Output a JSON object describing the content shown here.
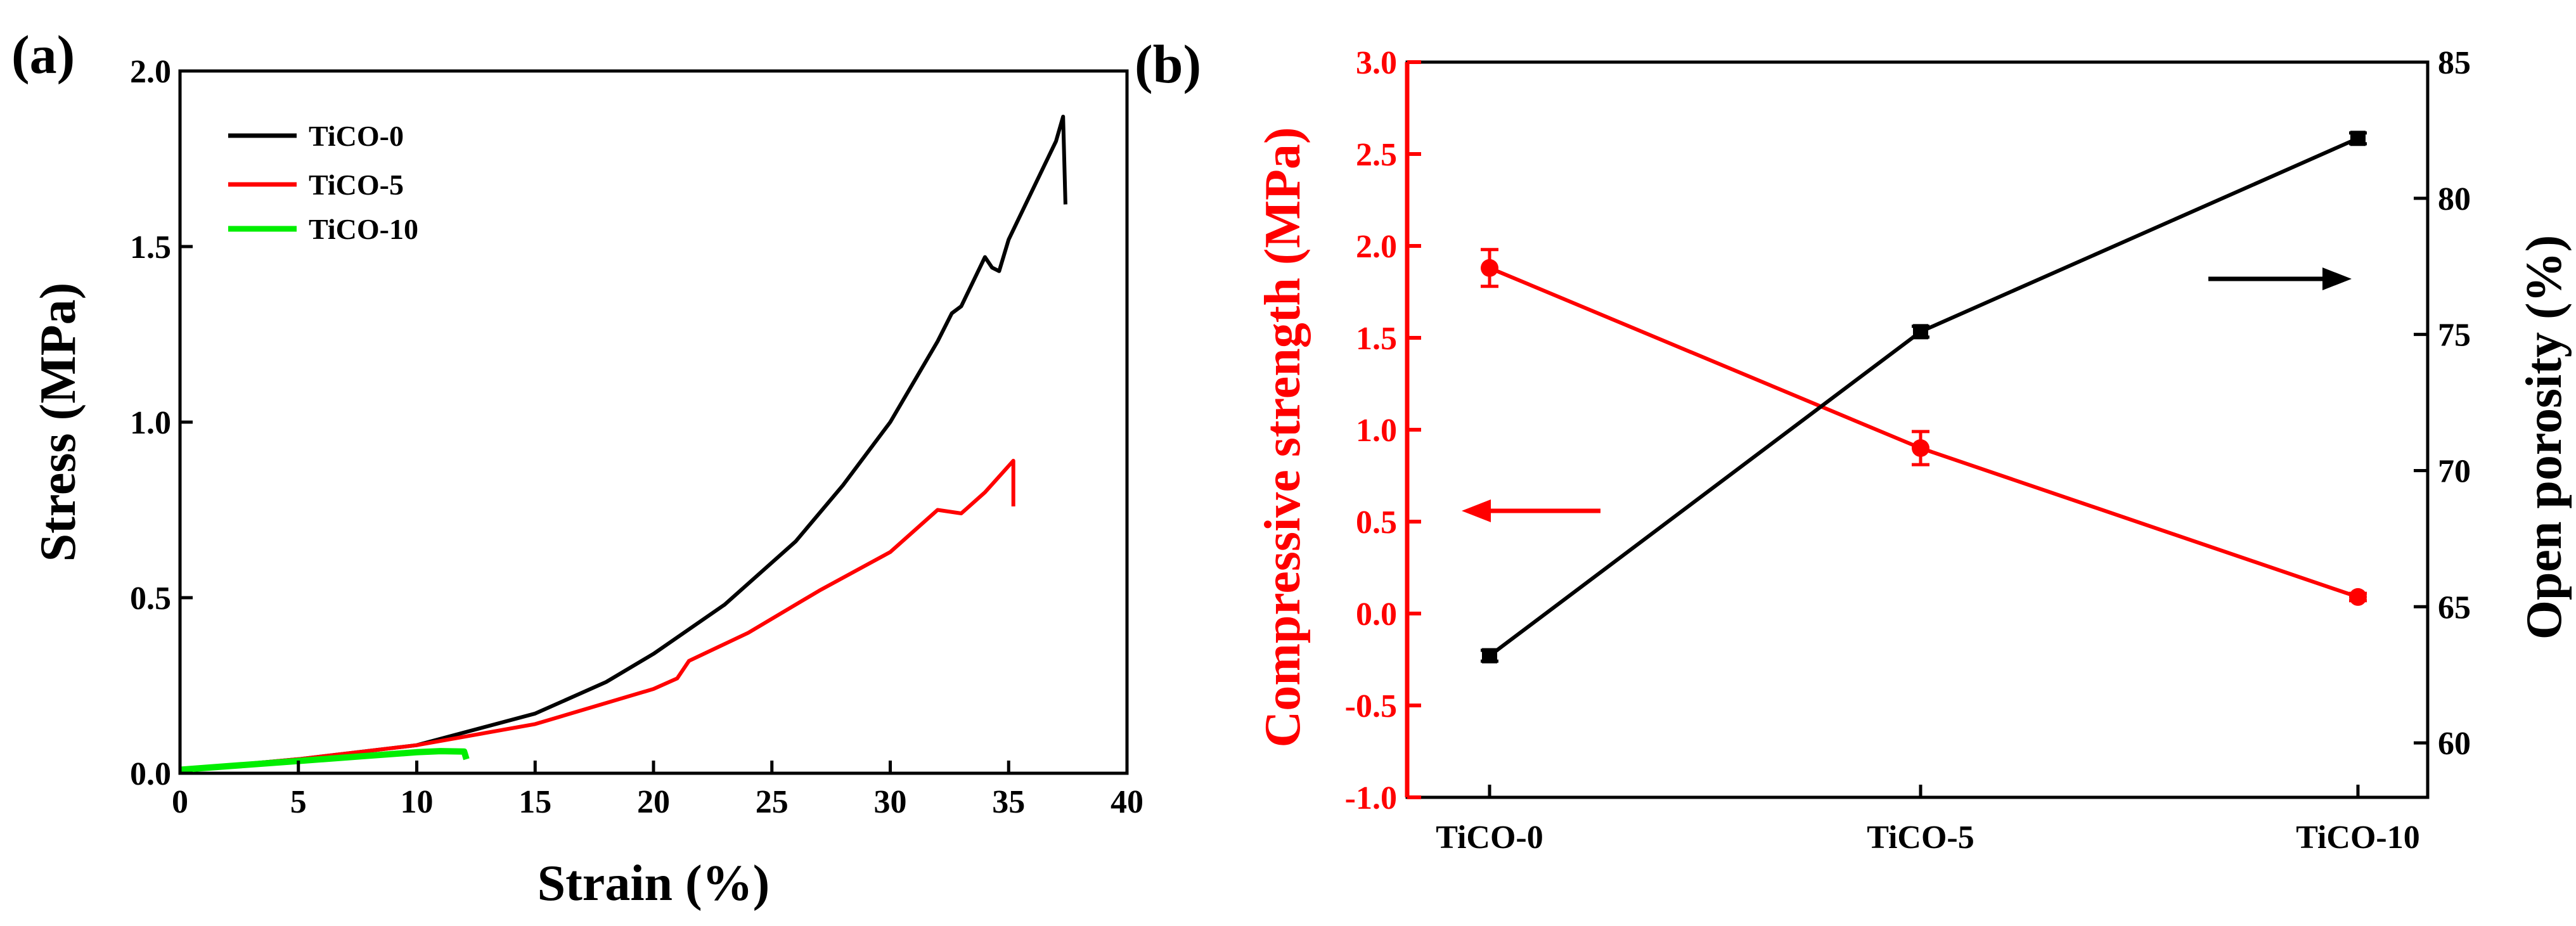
{
  "chart_data": [
    {
      "panel_label": "(a)",
      "type": "line",
      "xlabel": "Strain (%)",
      "ylabel": "Stress (MPa)",
      "xlim": [
        0,
        40
      ],
      "ylim": [
        0,
        2.0
      ],
      "xticks": [
        "0",
        "5",
        "10",
        "15",
        "20",
        "25",
        "30",
        "35",
        "40"
      ],
      "yticks": [
        "0.0",
        "0.5",
        "1.0",
        "1.5",
        "2.0"
      ],
      "grid": false,
      "legend_position": "top-left",
      "series": [
        {
          "name": "TiCO-0",
          "color": "#000000",
          "points": [
            [
              0,
              0.01
            ],
            [
              5,
              0.04
            ],
            [
              10,
              0.08
            ],
            [
              15,
              0.17
            ],
            [
              18,
              0.26
            ],
            [
              20,
              0.34
            ],
            [
              23,
              0.48
            ],
            [
              26,
              0.66
            ],
            [
              28,
              0.82
            ],
            [
              30,
              1.0
            ],
            [
              32,
              1.23
            ],
            [
              32.6,
              1.31
            ],
            [
              33,
              1.33
            ],
            [
              34,
              1.47
            ],
            [
              34.3,
              1.44
            ],
            [
              34.6,
              1.43
            ],
            [
              35,
              1.52
            ],
            [
              36,
              1.66
            ],
            [
              37,
              1.8
            ],
            [
              37.3,
              1.87
            ],
            [
              37.4,
              1.62
            ]
          ]
        },
        {
          "name": "TiCO-5",
          "color": "#ff0000",
          "points": [
            [
              0,
              0.01
            ],
            [
              5,
              0.04
            ],
            [
              10,
              0.08
            ],
            [
              15,
              0.14
            ],
            [
              20,
              0.24
            ],
            [
              21,
              0.27
            ],
            [
              21.5,
              0.32
            ],
            [
              24,
              0.4
            ],
            [
              27,
              0.52
            ],
            [
              30,
              0.63
            ],
            [
              32,
              0.75
            ],
            [
              33,
              0.74
            ],
            [
              34,
              0.8
            ],
            [
              35.2,
              0.89
            ],
            [
              35.2,
              0.76
            ]
          ]
        },
        {
          "name": "TiCO-10",
          "color": "#00ee00",
          "points": [
            [
              0,
              0.01
            ],
            [
              2,
              0.02
            ],
            [
              5,
              0.035
            ],
            [
              8,
              0.05
            ],
            [
              10,
              0.06
            ],
            [
              11,
              0.063
            ],
            [
              12,
              0.062
            ],
            [
              12.1,
              0.04
            ]
          ]
        }
      ]
    },
    {
      "panel_label": "(b)",
      "type": "line",
      "categories": [
        "TiCO-0",
        "TiCO-5",
        "TiCO-10"
      ],
      "ylabel_left": "Compressive strength (MPa)",
      "ylabel_right": "Open porosity (%)",
      "ylim_left": [
        -1.0,
        3.0
      ],
      "ylim_right": [
        58,
        85
      ],
      "yticks_left": [
        "-1.0",
        "-0.5",
        "0.0",
        "0.5",
        "1.0",
        "1.5",
        "2.0",
        "2.5",
        "3.0"
      ],
      "yticks_right": [
        "60",
        "65",
        "70",
        "75",
        "80",
        "85"
      ],
      "series": [
        {
          "name": "Compressive strength",
          "axis": "left",
          "color": "#ff0000",
          "marker": "circle",
          "values": [
            1.88,
            0.9,
            0.09
          ],
          "errors": [
            0.1,
            0.09,
            0.02
          ]
        },
        {
          "name": "Open porosity",
          "axis": "right",
          "color": "#000000",
          "marker": "square",
          "values": [
            63.2,
            75.1,
            82.2
          ],
          "errors": [
            0.2,
            0.2,
            0.2
          ]
        }
      ],
      "annotations": [
        {
          "type": "arrow",
          "direction": "left",
          "color": "#ff0000",
          "points_to_axis": "left"
        },
        {
          "type": "arrow",
          "direction": "right",
          "color": "#000000",
          "points_to_axis": "right"
        }
      ]
    }
  ]
}
